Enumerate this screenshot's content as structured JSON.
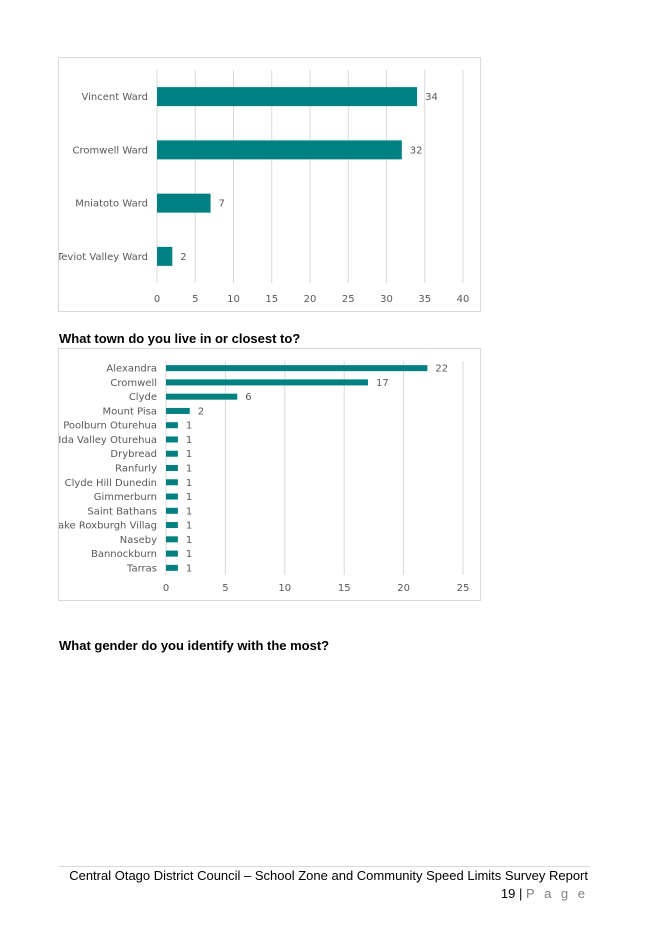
{
  "chart_data": [
    {
      "type": "bar",
      "orientation": "horizontal",
      "categories": [
        "Teviot Valley Ward",
        "Mniatoto Ward",
        "Cromwell Ward",
        "Vincent Ward"
      ],
      "values": [
        2,
        7,
        32,
        34
      ],
      "xlim": [
        0,
        40
      ],
      "xticks": [
        0,
        5,
        10,
        15,
        20,
        25,
        30,
        35,
        40
      ],
      "grid": true,
      "legend": "none",
      "color": "#008080"
    },
    {
      "type": "bar",
      "orientation": "horizontal",
      "categories": [
        "Alexandra",
        "Cromwell",
        "Clyde",
        "Mount Pisa",
        "Poolburn Oturehua",
        "Ida Valley Oturehua",
        "Drybread",
        "Ranfurly",
        "Clyde Hill Dunedin",
        "Gimmerburn",
        "Saint Bathans",
        "Lake Roxburgh Villag",
        "Naseby",
        "Bannockburn",
        "Tarras"
      ],
      "values": [
        22,
        17,
        6,
        2,
        1,
        1,
        1,
        1,
        1,
        1,
        1,
        1,
        1,
        1,
        1
      ],
      "xlim": [
        0,
        25
      ],
      "xticks": [
        0,
        5,
        10,
        15,
        20,
        25
      ],
      "grid": true,
      "legend": "none",
      "color": "#008080"
    }
  ],
  "headings": {
    "town_question": "What town do you live in or closest to?",
    "gender_question": "What gender do you identify with the most?"
  },
  "footer": {
    "report_title": "Central Otago District Council – School Zone and Community Speed Limits Survey Report",
    "page_number": "19",
    "separator": "|",
    "page_label": "P a g e"
  }
}
